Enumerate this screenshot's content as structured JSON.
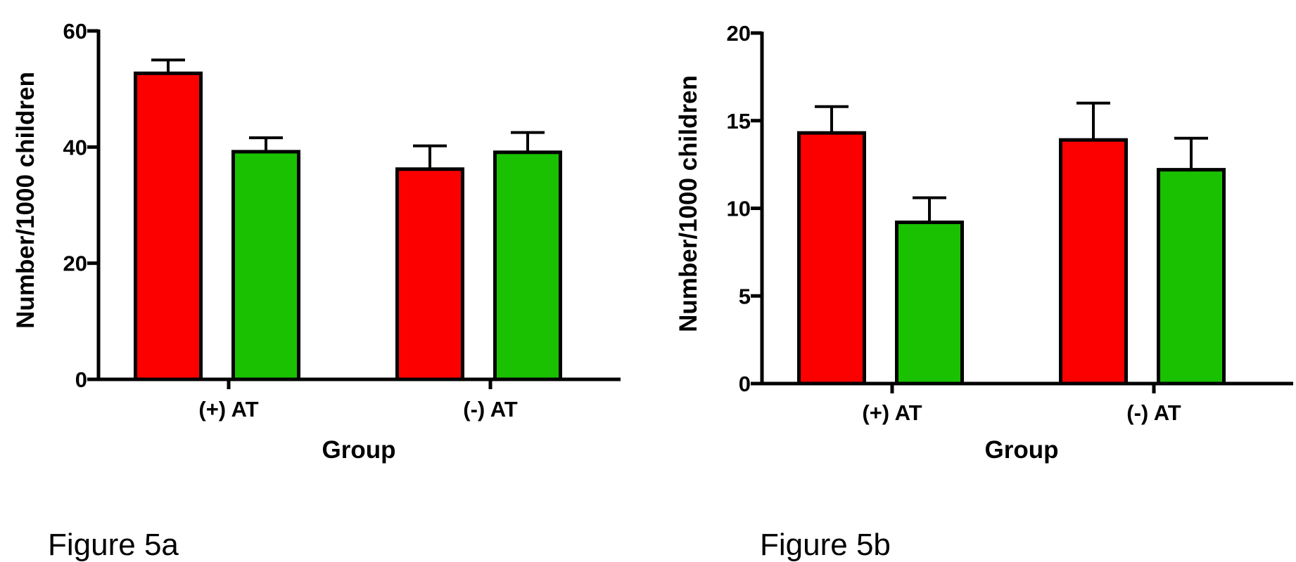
{
  "chart_data": [
    {
      "type": "bar",
      "caption": "Figure 5a",
      "xlabel": "Group",
      "ylabel": "Number/1000 children",
      "categories": [
        "(+) AT",
        "(-) AT"
      ],
      "ylim": [
        0,
        60
      ],
      "yticks": [
        0,
        20,
        40,
        60
      ],
      "series": [
        {
          "color": "#fc0000",
          "values": [
            52.7,
            36.2
          ],
          "errors": [
            2.3,
            4.0
          ]
        },
        {
          "color": "#19c100",
          "values": [
            39.2,
            39.1
          ],
          "errors": [
            2.4,
            3.4
          ]
        }
      ]
    },
    {
      "type": "bar",
      "caption": "Figure 5b",
      "xlabel": "Group",
      "ylabel": "Number/1000 children",
      "categories": [
        "(+) AT",
        "(-) AT"
      ],
      "ylim": [
        0,
        20
      ],
      "yticks": [
        0,
        5,
        10,
        15,
        20
      ],
      "series": [
        {
          "color": "#fc0000",
          "values": [
            14.3,
            13.9
          ],
          "errors": [
            1.5,
            2.1
          ]
        },
        {
          "color": "#19c100",
          "values": [
            9.2,
            12.2
          ],
          "errors": [
            1.4,
            1.8
          ]
        }
      ]
    }
  ]
}
